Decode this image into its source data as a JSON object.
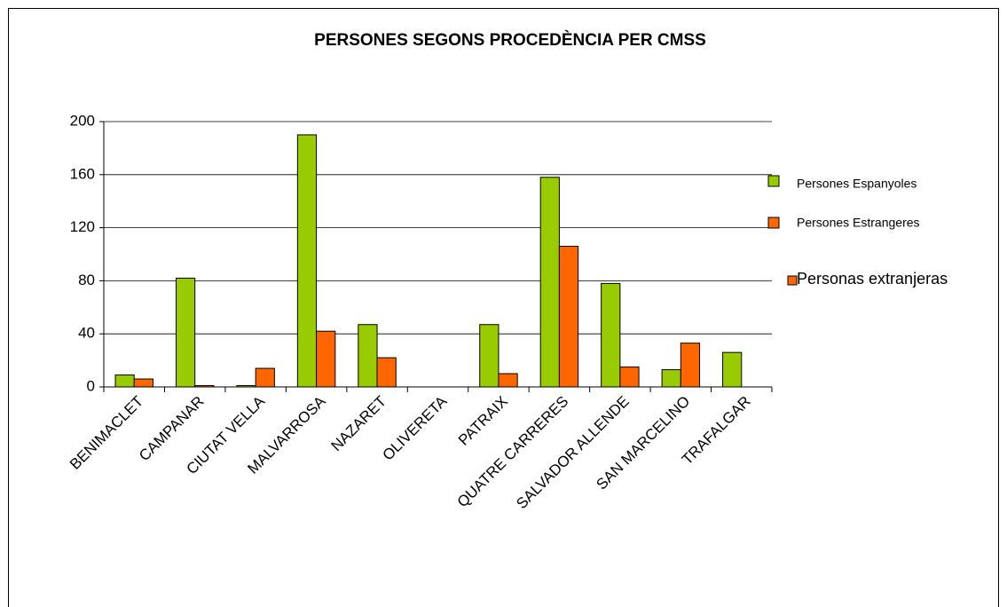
{
  "chart_data": {
    "type": "bar",
    "title": "PERSONES SEGONS PROCEDÈNCIA PER CMSS",
    "categories": [
      "BENIMACLET",
      "CAMPANAR",
      "CIUTAT VELLA",
      "MALVARROSA",
      "NAZARET",
      "OLIVERETA",
      "PATRAIX",
      "QUATRE CARRERES",
      "SALVADOR ALLENDE",
      "SAN MARCELINO",
      "TRAFALGAR"
    ],
    "series": [
      {
        "name": "Persones Espanyoles",
        "color": "#99cc00",
        "values": [
          9,
          82,
          1,
          190,
          47,
          0,
          47,
          158,
          78,
          13,
          26
        ]
      },
      {
        "name": "Persones Estrangeres",
        "color": "#ff6600",
        "values": [
          6,
          1,
          14,
          42,
          22,
          0,
          10,
          106,
          15,
          33,
          0
        ]
      },
      {
        "name": "Personas extranjeras",
        "color": "#ff6600",
        "values": [
          null,
          null,
          null,
          null,
          null,
          null,
          null,
          null,
          null,
          null,
          null
        ]
      }
    ],
    "ylim": [
      0,
      200
    ],
    "yticks": [
      0,
      40,
      80,
      120,
      160,
      200
    ],
    "grid": true,
    "legend": "right"
  }
}
